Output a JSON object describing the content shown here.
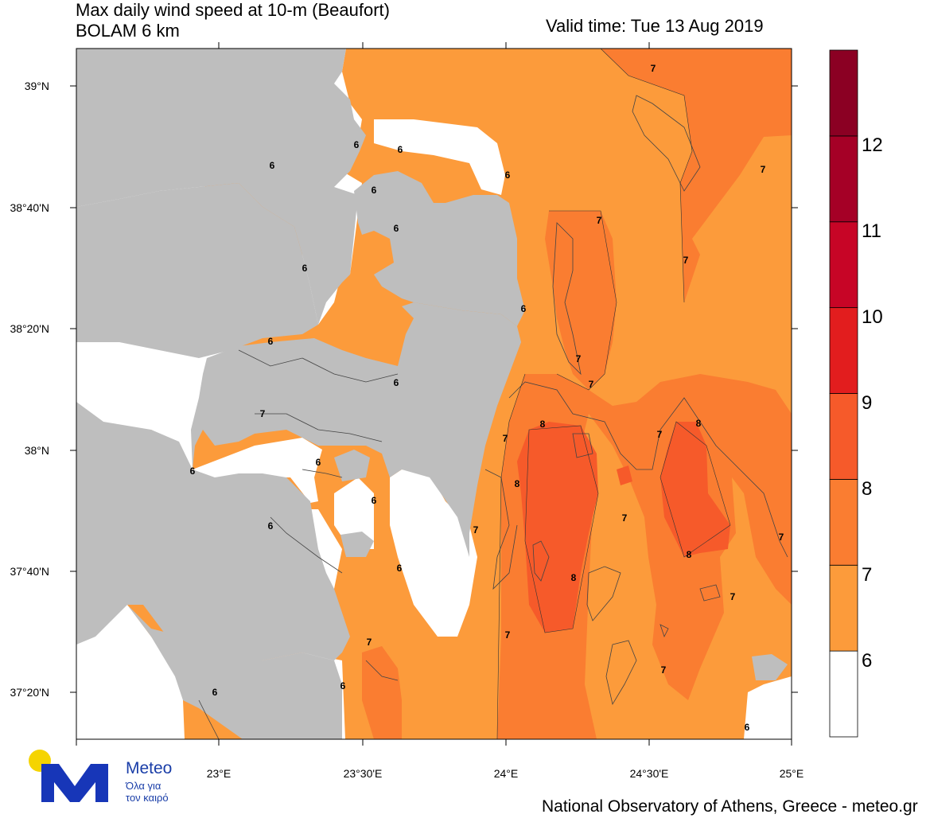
{
  "header": {
    "title_line1": "Max daily wind speed at 10-m (Beaufort)",
    "title_line2": "BOLAM 6 km",
    "valid_time": "Valid time: Tue 13 Aug 2019"
  },
  "footer": {
    "credit": "National Observatory of Athens, Greece - meteo.gr"
  },
  "logo": {
    "brand": "Meteo",
    "tagline_line1": "Όλα για",
    "tagline_line2": "τον καιρό",
    "sun_color": "#f5d400",
    "mark_color": "#1736b8"
  },
  "map": {
    "lat_labels": [
      "39°N",
      "38°40'N",
      "38°20'N",
      "38°N",
      "37°40'N",
      "37°20'N"
    ],
    "lon_labels": [
      "23°E",
      "23°30'E",
      "24°E",
      "24°30'E",
      "25°E"
    ],
    "land_color": "#bebebe",
    "contour_labels": [
      "7",
      "6",
      "6",
      "6",
      "7",
      "6",
      "6",
      "7",
      "6",
      "7",
      "6",
      "6",
      "6",
      "7",
      "7",
      "7",
      "8",
      "7",
      "8",
      "7",
      "6",
      "6",
      "8",
      "6",
      "6",
      "7",
      "7",
      "6",
      "8",
      "7",
      "8",
      "7",
      "7",
      "7",
      "6",
      "6",
      "7",
      "6"
    ]
  },
  "colorbar": {
    "labels": [
      "12",
      "11",
      "10",
      "9",
      "8",
      "7",
      "6"
    ],
    "colors": [
      "#ffffff",
      "#fc9b3b",
      "#fa7d31",
      "#f65a2a",
      "#e21d1e",
      "#c70526",
      "#a50026",
      "#8b0023"
    ]
  }
}
